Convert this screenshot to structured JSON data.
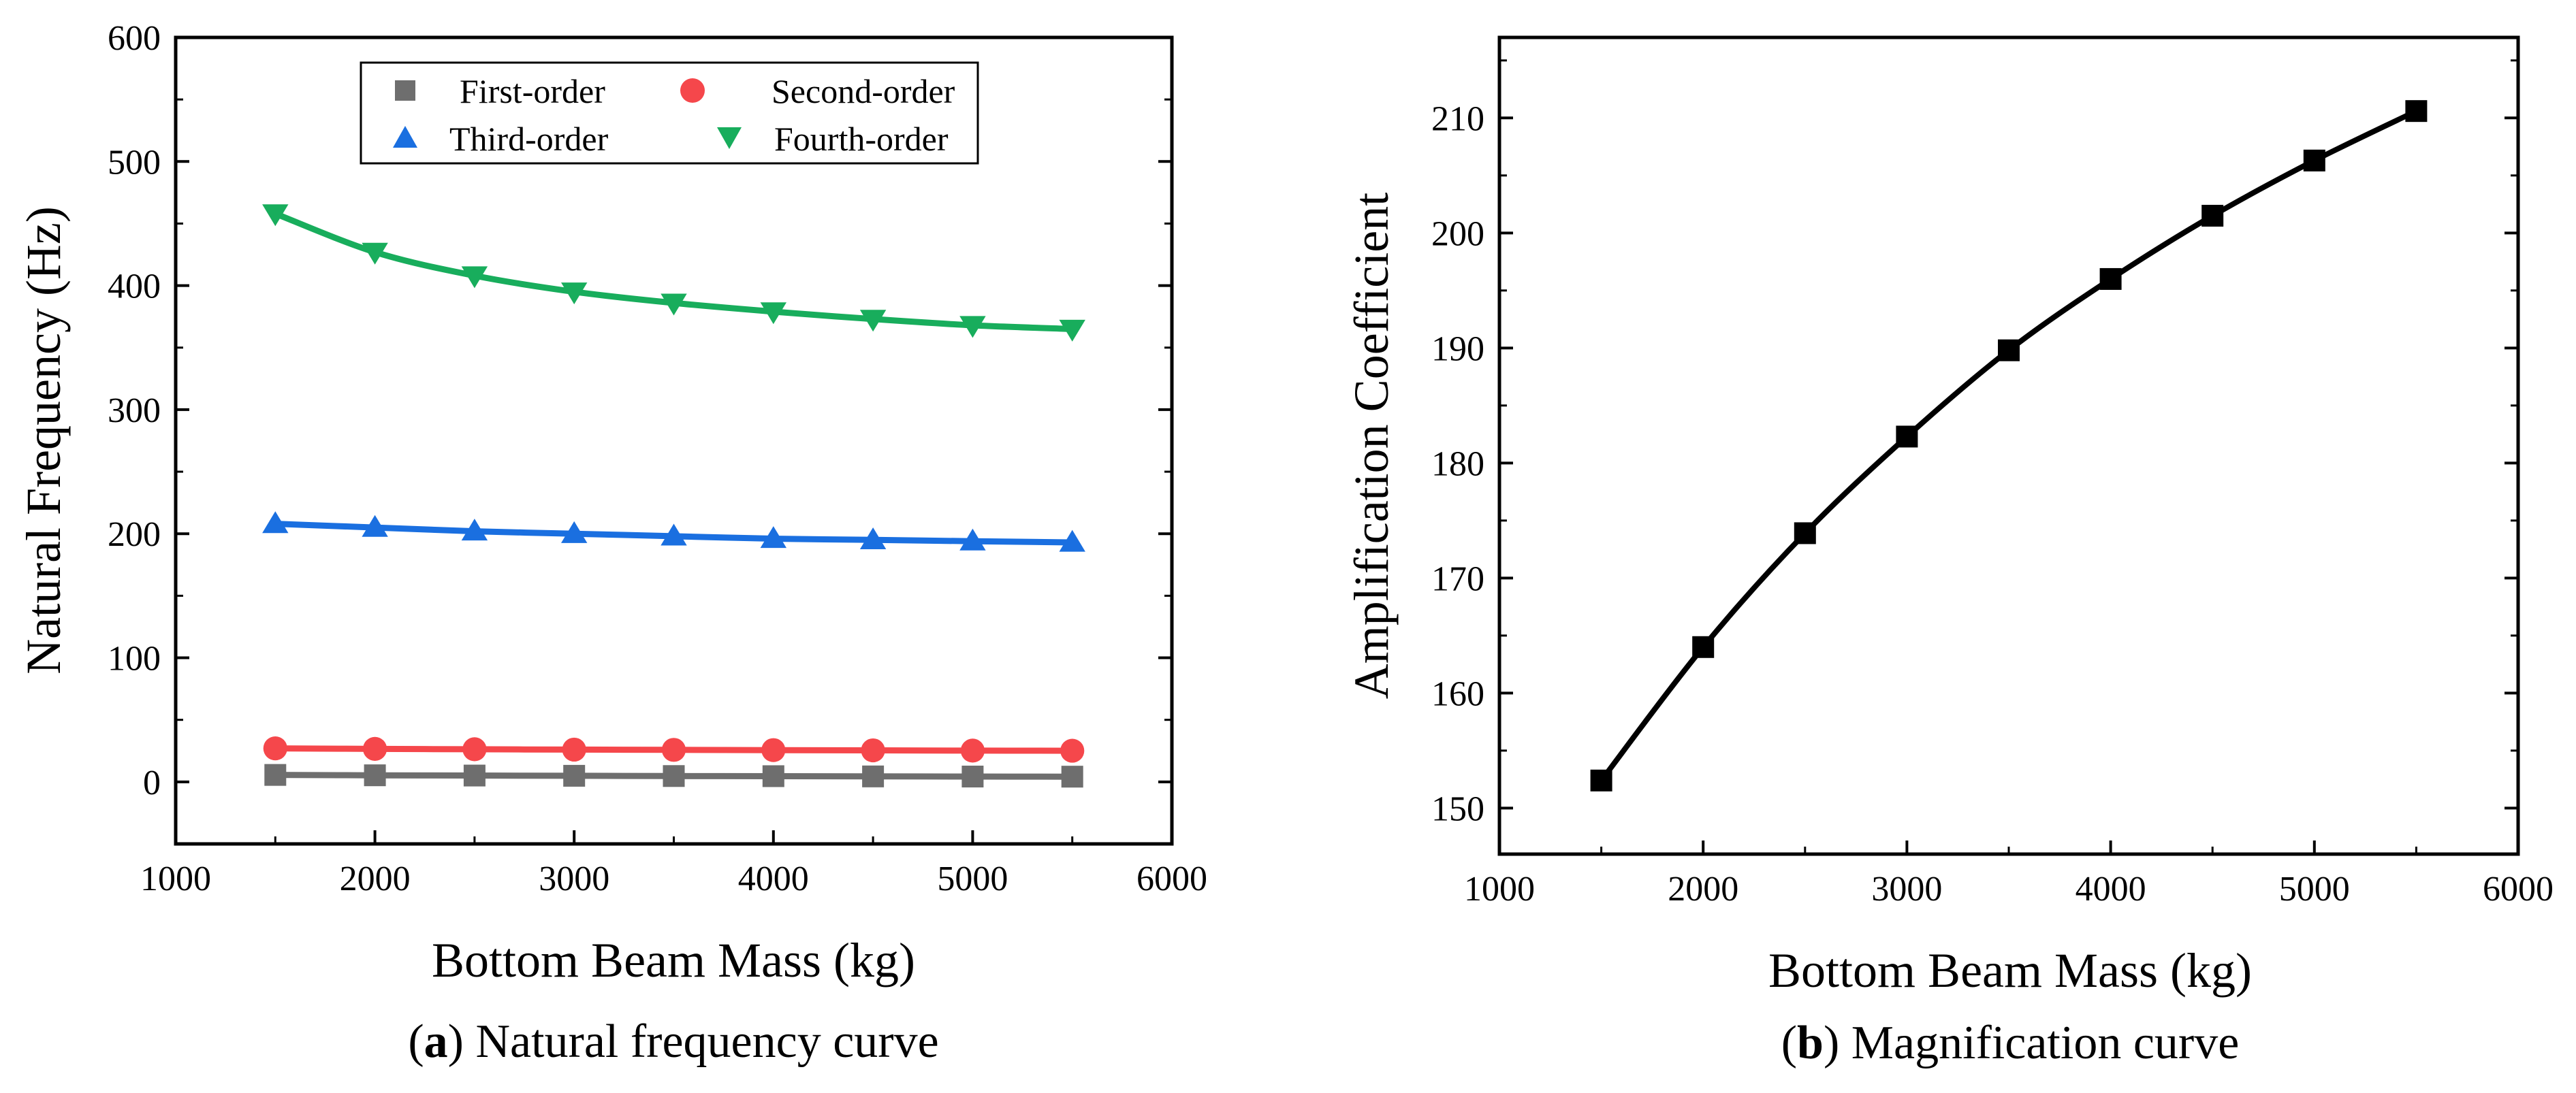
{
  "chart_data": [
    {
      "id": "a",
      "type": "line",
      "caption": {
        "letter": "a",
        "text": "Natural frequency curve"
      },
      "xlabel": "Bottom Beam Mass (kg)",
      "ylabel": "Natural Frequency (Hz)",
      "xlim": [
        1000,
        6000
      ],
      "ylim": [
        -50,
        600
      ],
      "xticks": [
        "1000",
        "2000",
        "3000",
        "4000",
        "5000",
        "6000"
      ],
      "yticks": [
        "0",
        "100",
        "200",
        "300",
        "400",
        "500",
        "600"
      ],
      "x": [
        1500,
        2000,
        2500,
        3000,
        3500,
        4000,
        4500,
        5000,
        5500
      ],
      "series": [
        {
          "name": "First-order",
          "marker": "square",
          "color": "#6e6e6e",
          "values": [
            5.6,
            5.3,
            5.1,
            4.9,
            4.7,
            4.6,
            4.4,
            4.3,
            4.2
          ]
        },
        {
          "name": "Second-order",
          "marker": "circle",
          "color": "#f5474b",
          "values": [
            27,
            26.6,
            26.3,
            26,
            25.8,
            25.6,
            25.4,
            25.2,
            25.1
          ]
        },
        {
          "name": "Third-order",
          "marker": "triangle-up",
          "color": "#1a6fe0",
          "values": [
            208,
            205,
            202,
            200,
            198,
            196,
            195,
            194,
            193
          ]
        },
        {
          "name": "Fourth-order",
          "marker": "triangle-down",
          "color": "#18ad5c",
          "values": [
            458,
            427,
            408,
            395,
            386,
            379,
            373,
            368,
            365
          ]
        }
      ],
      "legend": "top, inside, two columns"
    },
    {
      "id": "b",
      "type": "line",
      "caption": {
        "letter": "b",
        "text": "Magnification curve"
      },
      "xlabel": "Bottom Beam Mass (kg)",
      "ylabel": "Amplification Coefficient",
      "xlim": [
        1000,
        6000
      ],
      "ylim": [
        146,
        217
      ],
      "xticks": [
        "1000",
        "2000",
        "3000",
        "4000",
        "5000",
        "6000"
      ],
      "yticks": [
        "150",
        "160",
        "170",
        "180",
        "190",
        "200",
        "210"
      ],
      "x": [
        1500,
        2000,
        2500,
        3000,
        3500,
        4000,
        4500,
        5000,
        5500
      ],
      "series": [
        {
          "name": "Amplification Coefficient",
          "marker": "square",
          "color": "#000000",
          "values": [
            152.4,
            164.0,
            173.9,
            182.3,
            189.8,
            196.0,
            201.5,
            206.3,
            210.6
          ]
        }
      ]
    }
  ]
}
